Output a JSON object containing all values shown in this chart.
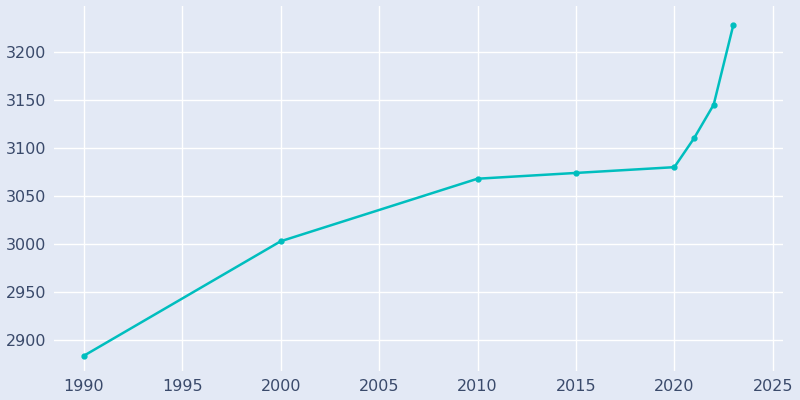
{
  "years": [
    1990,
    2000,
    2010,
    2015,
    2020,
    2021,
    2022,
    2023
  ],
  "population": [
    2884,
    3003,
    3068,
    3074,
    3080,
    3110,
    3145,
    3228
  ],
  "line_color": "#00BEBE",
  "marker": "o",
  "marker_size": 3.5,
  "line_width": 1.8,
  "bg_color": "#E3E9F5",
  "plot_bg_color": "#E3E9F5",
  "grid_color": "#FFFFFF",
  "tick_color": "#3A4A6B",
  "xlim": [
    1988.5,
    2025.5
  ],
  "ylim": [
    2868,
    3248
  ],
  "xticks": [
    1990,
    1995,
    2000,
    2005,
    2010,
    2015,
    2020,
    2025
  ],
  "yticks": [
    2900,
    2950,
    3000,
    3050,
    3100,
    3150,
    3200
  ],
  "tick_fontsize": 11.5
}
